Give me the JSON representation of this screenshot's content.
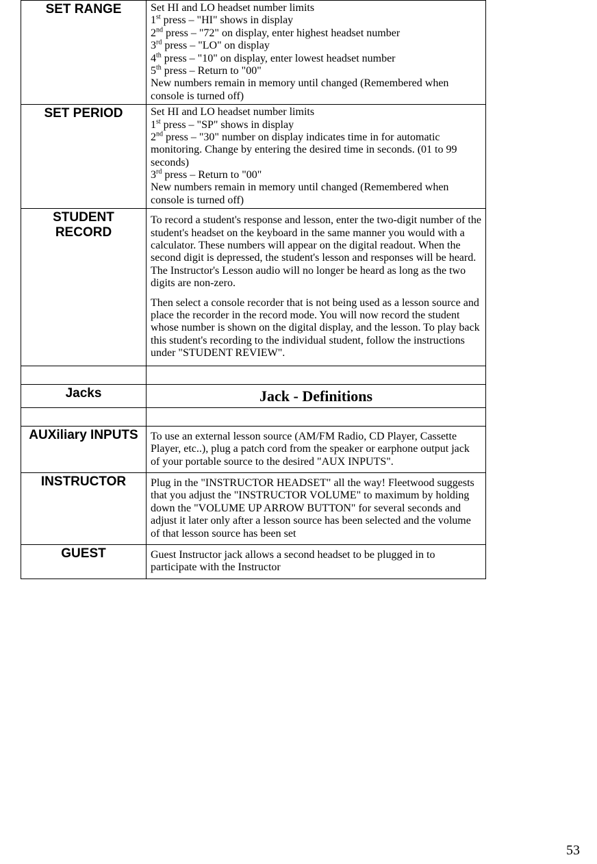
{
  "page_number": "53",
  "rows": {
    "set_range": {
      "label": "SET RANGE",
      "lines": [
        {
          "text": "Set HI and LO headset number limits"
        },
        {
          "ord": "1",
          "sup": "st",
          "rest": " press – \"HI\" shows in display"
        },
        {
          "ord": "2",
          "sup": "nd",
          "rest": " press – \"72\" on display, enter highest headset number"
        },
        {
          "ord": "3",
          "sup": "rd",
          "rest": " press – \"LO\" on display"
        },
        {
          "ord": "4",
          "sup": "th",
          "rest": " press – \"10\" on display, enter lowest headset number"
        },
        {
          "ord": "5",
          "sup": "th",
          "rest": " press – Return to \"00\""
        },
        {
          "text": "New numbers remain in memory until changed (Remembered when console is turned off)"
        }
      ]
    },
    "set_period": {
      "label": "SET PERIOD",
      "lines": [
        {
          "text": "Set HI and LO headset number limits"
        },
        {
          "ord": "1",
          "sup": "st",
          "rest": " press – \"SP\" shows in display"
        },
        {
          "ord": "2",
          "sup": "nd",
          "rest": " press – \"30\" number on display indicates time in for automatic monitoring. Change by entering the desired time in seconds. (01 to 99 seconds)"
        },
        {
          "ord": "3",
          "sup": "rd",
          "rest": "  press – Return to \"00\""
        },
        {
          "text": "New numbers remain in memory until changed (Remembered when console is turned off)"
        }
      ]
    },
    "student_record": {
      "label": "STUDENT RECORD",
      "para1": "To record a student's response and lesson, enter the two-digit number of the student's headset on the keyboard in the same manner you would with a calculator. These numbers will appear on the digital readout. When the second digit is depressed, the student's lesson and responses will be heard.  The Instructor's Lesson audio will no longer be heard as long as the two digits are non-zero.",
      "para2": "Then select a console recorder that is not being used as a lesson source and place the recorder in the record mode. You will now record the student whose number is shown on the digital display, and the lesson. To play back this student's recording to the individual student, follow the instructions under \"STUDENT REVIEW\"."
    },
    "jacks_header": {
      "label": "Jacks",
      "title": "Jack - Definitions"
    },
    "aux_inputs": {
      "label": "AUXiliary INPUTS",
      "text": "To use an external lesson source (AM/FM Radio, CD Player, Cassette Player, etc..), plug a patch cord from the speaker or earphone output jack of your portable source to the desired \"AUX INPUTS\"."
    },
    "instructor": {
      "label": "INSTRUCTOR",
      "text": "Plug in the \"INSTRUCTOR HEADSET\" all the way! Fleetwood suggests that you adjust the \"INSTRUCTOR VOLUME\" to maximum by holding down the \"VOLUME UP ARROW BUTTON\" for several seconds and adjust it later only after a lesson source has been selected and the volume of that lesson source has been set"
    },
    "guest": {
      "label": "GUEST",
      "text": "Guest Instructor jack allows a second headset to be plugged in to participate with the Instructor"
    }
  }
}
